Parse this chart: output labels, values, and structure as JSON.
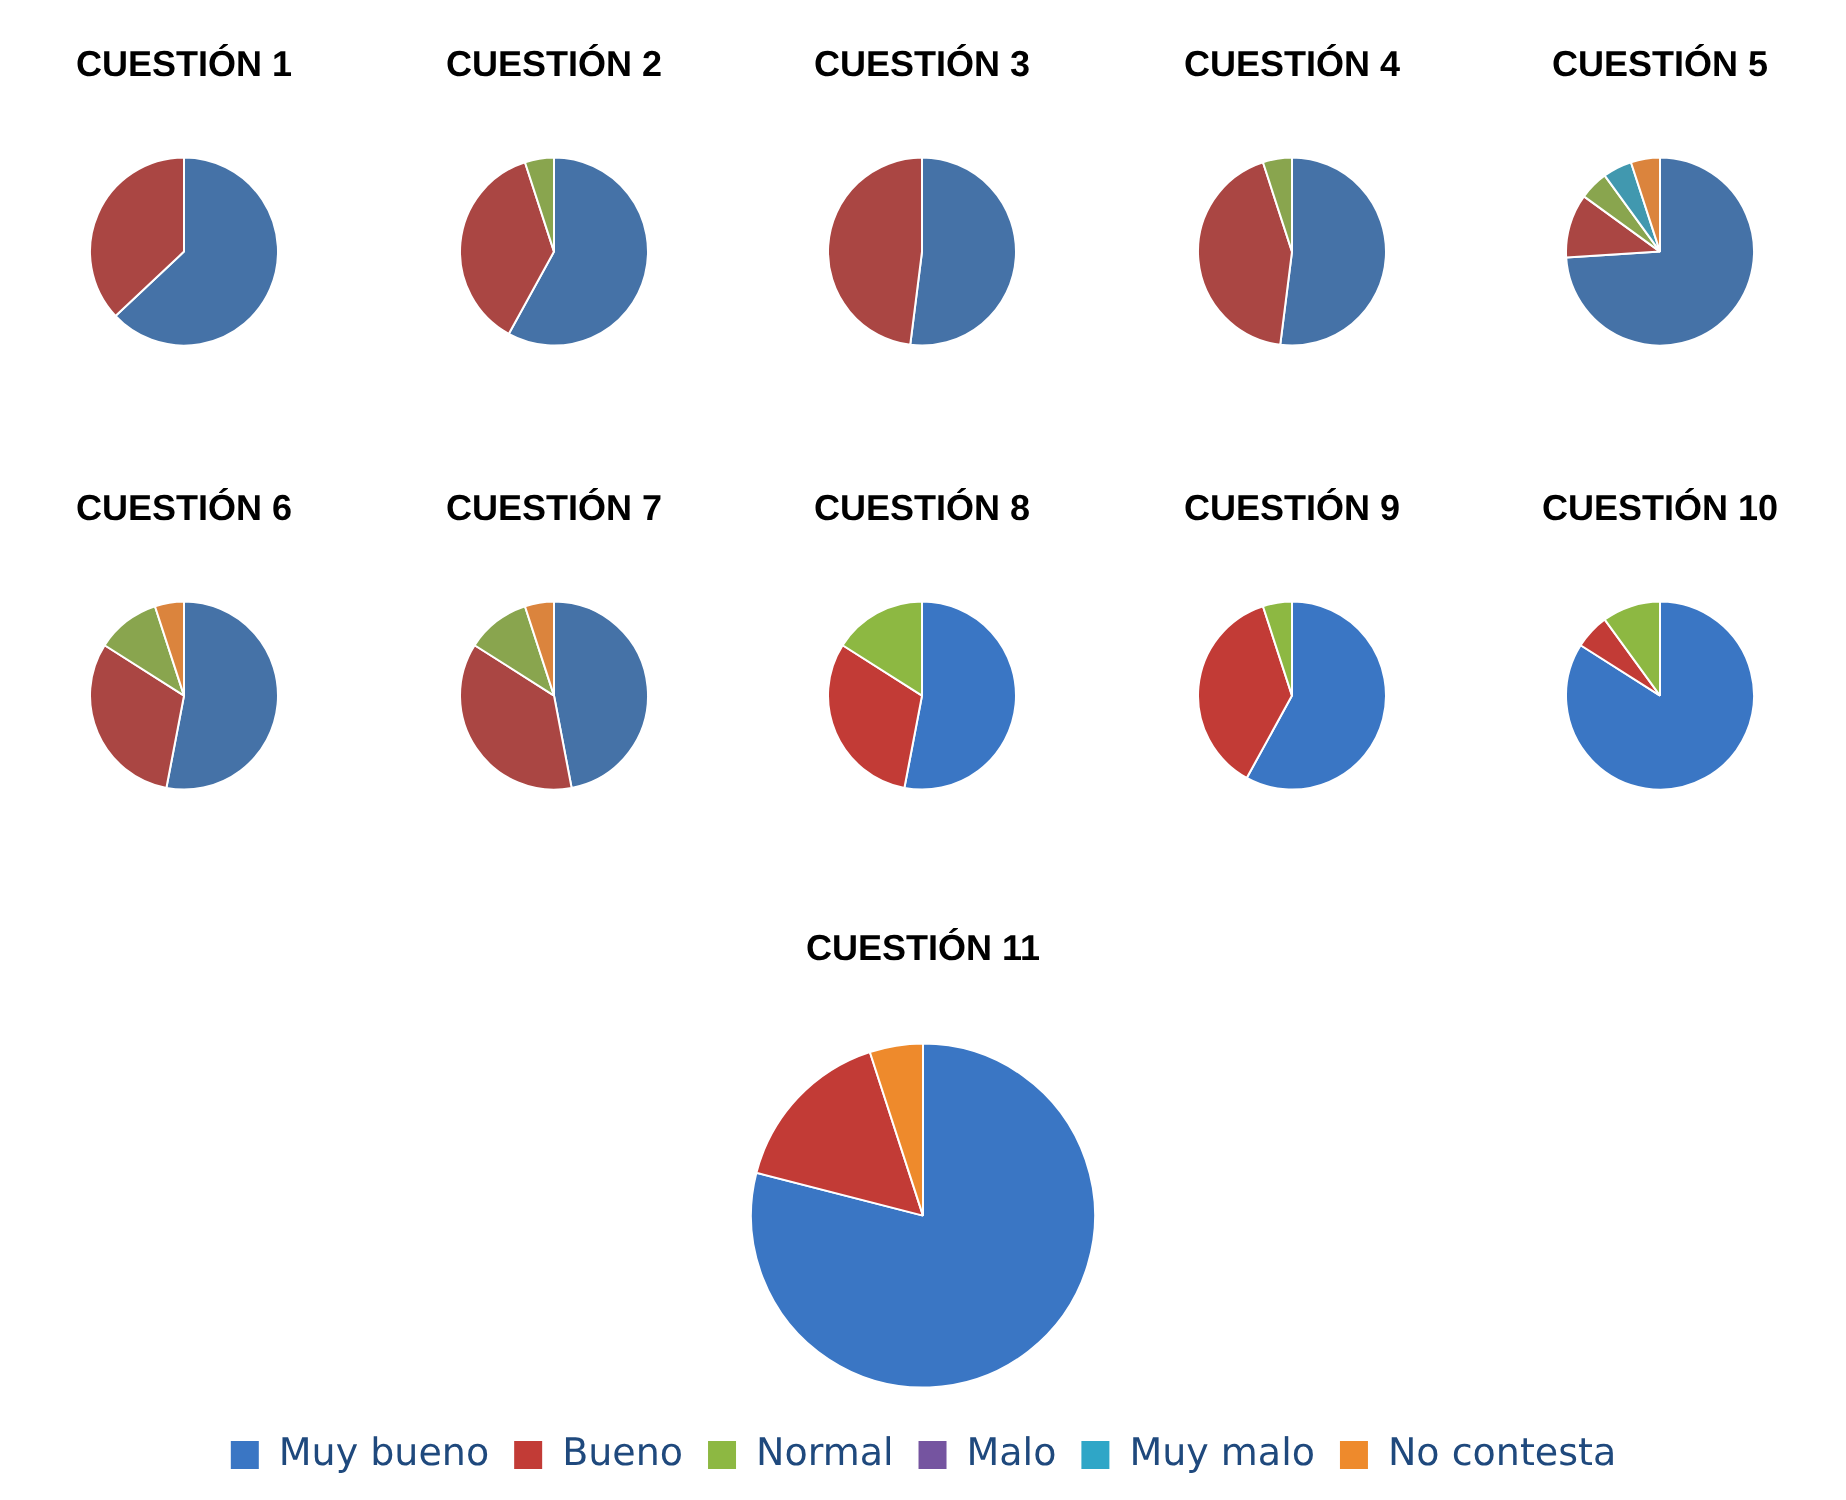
{
  "chart_data": [
    {
      "type": "pie",
      "title": "CUESTIÓN 1",
      "categories": [
        null,
        null,
        null,
        null,
        null,
        null
      ],
      "values": [
        63,
        37,
        0,
        0,
        0,
        0
      ],
      "colors": [
        "#4572a7",
        "#aa4643",
        "#89a54e",
        "#71588f",
        "#4198af",
        "#db843d"
      ],
      "legend": false
    },
    {
      "type": "pie",
      "title": "CUESTIÓN 2",
      "categories": [
        null,
        null,
        null,
        null,
        null,
        null
      ],
      "values": [
        58,
        37,
        5,
        0,
        0,
        0
      ],
      "colors": [
        "#4572a7",
        "#aa4643",
        "#89a54e",
        "#71588f",
        "#4198af",
        "#db843d"
      ],
      "legend": false
    },
    {
      "type": "pie",
      "title": "CUESTIÓN 3",
      "categories": [
        null,
        null,
        null,
        null,
        null,
        null
      ],
      "values": [
        52,
        48,
        0,
        0,
        0,
        0
      ],
      "colors": [
        "#4572a7",
        "#aa4643",
        "#89a54e",
        "#71588f",
        "#4198af",
        "#db843d"
      ],
      "legend": false
    },
    {
      "type": "pie",
      "title": "CUESTIÓN 4",
      "categories": [
        null,
        null,
        null,
        null,
        null,
        null
      ],
      "values": [
        52,
        43,
        5,
        0,
        0,
        0
      ],
      "colors": [
        "#4572a7",
        "#aa4643",
        "#89a54e",
        "#71588f",
        "#4198af",
        "#db843d"
      ],
      "legend": false
    },
    {
      "type": "pie",
      "title": "CUESTIÓN 5",
      "categories": [
        null,
        null,
        null,
        null,
        null,
        null
      ],
      "values": [
        74,
        11,
        5,
        0,
        5,
        5
      ],
      "colors": [
        "#4572a7",
        "#aa4643",
        "#89a54e",
        "#71588f",
        "#4198af",
        "#db843d"
      ],
      "legend": false
    },
    {
      "type": "pie",
      "title": "CUESTIÓN 6",
      "categories": [
        null,
        null,
        null,
        null,
        null,
        null
      ],
      "values": [
        53,
        31,
        11,
        0,
        0,
        5
      ],
      "colors": [
        "#4572a7",
        "#aa4643",
        "#89a54e",
        "#71588f",
        "#4198af",
        "#db843d"
      ],
      "legend": false
    },
    {
      "type": "pie",
      "title": "CUESTIÓN 7",
      "categories": [
        null,
        null,
        null,
        null,
        null,
        null
      ],
      "values": [
        47,
        37,
        11,
        0,
        0,
        5
      ],
      "colors": [
        "#4572a7",
        "#aa4643",
        "#89a54e",
        "#71588f",
        "#4198af",
        "#db843d"
      ],
      "legend": false
    },
    {
      "type": "pie",
      "title": "CUESTIÓN 8",
      "categories": [
        null,
        null,
        null,
        null,
        null,
        null
      ],
      "values": [
        53,
        31,
        16,
        0,
        0,
        0
      ],
      "colors": [
        "#3a76c4",
        "#c23b36",
        "#8db842",
        "#7554a0",
        "#2fa6c7",
        "#ee8a2c"
      ],
      "legend": false
    },
    {
      "type": "pie",
      "title": "CUESTIÓN 9",
      "categories": [
        null,
        null,
        null,
        null,
        null,
        null
      ],
      "values": [
        58,
        37,
        5,
        0,
        0,
        0
      ],
      "colors": [
        "#3a76c4",
        "#c23b36",
        "#8db842",
        "#7554a0",
        "#2fa6c7",
        "#ee8a2c"
      ],
      "legend": false
    },
    {
      "type": "pie",
      "title": "CUESTIÓN 10",
      "categories": [
        null,
        null,
        null,
        null,
        null,
        null
      ],
      "values": [
        84,
        6,
        10,
        0,
        0,
        0
      ],
      "colors": [
        "#3a76c4",
        "#c23b36",
        "#8db842",
        "#7554a0",
        "#2fa6c7",
        "#ee8a2c"
      ],
      "legend": false
    },
    {
      "type": "pie",
      "title": "CUESTIÓN 11",
      "categories": [
        "Muy bueno",
        "Bueno",
        "Normal",
        "Malo",
        "Muy malo",
        "No contesta"
      ],
      "values": [
        79,
        16,
        0,
        0,
        0,
        5
      ],
      "colors": [
        "#3a76c4",
        "#c23b36",
        "#8db842",
        "#7554a0",
        "#2fa6c7",
        "#ee8a2c"
      ],
      "legend": "bottom"
    }
  ]
}
